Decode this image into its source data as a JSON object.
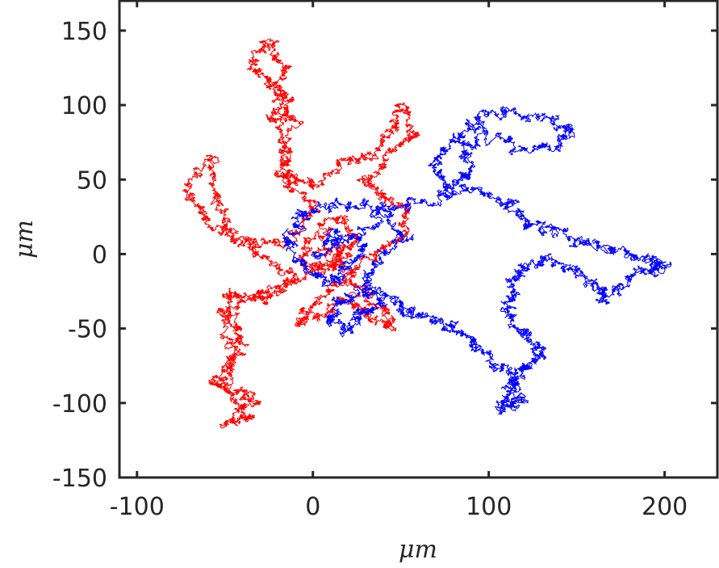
{
  "chart_data": {
    "type": "line",
    "title": "",
    "xlabel": "μm",
    "ylabel": "μm",
    "xlim": [
      -110,
      230
    ],
    "ylim": [
      -150,
      170
    ],
    "xticks": [
      -100,
      0,
      100,
      200
    ],
    "yticks": [
      -150,
      -100,
      -50,
      0,
      50,
      100,
      150
    ],
    "xtick_labels": [
      "-100",
      "0",
      "100",
      "200"
    ],
    "ytick_labels": [
      "-150",
      "-100",
      "-50",
      "0",
      "50",
      "100",
      "150"
    ],
    "grid": false,
    "legend": "none",
    "series": [
      {
        "color": "#ff0000",
        "description": "2D random-walk trajectory",
        "waypoints": [
          [
            0,
            0
          ],
          [
            15,
            5
          ],
          [
            -10,
            -20
          ],
          [
            -20,
            -25
          ],
          [
            -35,
            -30
          ],
          [
            -50,
            -28
          ],
          [
            -45,
            -45
          ],
          [
            -40,
            -60
          ],
          [
            -45,
            -75
          ],
          [
            -58,
            -87
          ],
          [
            -40,
            -92
          ],
          [
            -32,
            -100
          ],
          [
            -50,
            -115
          ],
          [
            -35,
            -110
          ],
          [
            -50,
            -90
          ],
          [
            -45,
            -70
          ],
          [
            -48,
            -40
          ],
          [
            -30,
            -25
          ],
          [
            -10,
            -15
          ],
          [
            -30,
            0
          ],
          [
            -45,
            10
          ],
          [
            -60,
            25
          ],
          [
            -72,
            42
          ],
          [
            -60,
            65
          ],
          [
            -55,
            40
          ],
          [
            -50,
            20
          ],
          [
            -35,
            5
          ],
          [
            -10,
            10
          ],
          [
            0,
            30
          ],
          [
            -10,
            48
          ],
          [
            -20,
            52
          ],
          [
            -15,
            70
          ],
          [
            -25,
            90
          ],
          [
            -15,
            100
          ],
          [
            -25,
            115
          ],
          [
            -35,
            125
          ],
          [
            -25,
            145
          ],
          [
            -15,
            125
          ],
          [
            -20,
            105
          ],
          [
            -10,
            90
          ],
          [
            -15,
            60
          ],
          [
            0,
            45
          ],
          [
            15,
            60
          ],
          [
            30,
            65
          ],
          [
            45,
            80
          ],
          [
            50,
            100
          ],
          [
            60,
            80
          ],
          [
            45,
            70
          ],
          [
            30,
            50
          ],
          [
            40,
            40
          ],
          [
            55,
            30
          ],
          [
            50,
            10
          ],
          [
            35,
            0
          ],
          [
            20,
            -15
          ],
          [
            5,
            -30
          ],
          [
            -10,
            -45
          ],
          [
            5,
            -40
          ],
          [
            20,
            -30
          ],
          [
            30,
            -40
          ],
          [
            45,
            -50
          ],
          [
            40,
            -35
          ],
          [
            25,
            -20
          ],
          [
            10,
            -5
          ],
          [
            25,
            10
          ],
          [
            15,
            25
          ],
          [
            0,
            10
          ],
          [
            -5,
            -5
          ],
          [
            10,
            -10
          ],
          [
            20,
            0
          ]
        ]
      },
      {
        "color": "#0000ff",
        "description": "2D random-walk trajectory",
        "waypoints": [
          [
            0,
            0
          ],
          [
            20,
            10
          ],
          [
            40,
            25
          ],
          [
            60,
            35
          ],
          [
            80,
            40
          ],
          [
            70,
            55
          ],
          [
            75,
            70
          ],
          [
            85,
            80
          ],
          [
            95,
            90
          ],
          [
            110,
            95
          ],
          [
            130,
            90
          ],
          [
            145,
            85
          ],
          [
            140,
            75
          ],
          [
            120,
            70
          ],
          [
            100,
            80
          ],
          [
            85,
            70
          ],
          [
            90,
            55
          ],
          [
            80,
            45
          ],
          [
            100,
            40
          ],
          [
            115,
            35
          ],
          [
            120,
            20
          ],
          [
            135,
            15
          ],
          [
            150,
            10
          ],
          [
            165,
            5
          ],
          [
            180,
            0
          ],
          [
            195,
            -5
          ],
          [
            202,
            -8
          ],
          [
            190,
            -10
          ],
          [
            175,
            -20
          ],
          [
            165,
            -30
          ],
          [
            160,
            -20
          ],
          [
            145,
            -10
          ],
          [
            130,
            -5
          ],
          [
            120,
            -10
          ],
          [
            115,
            -20
          ],
          [
            110,
            -35
          ],
          [
            115,
            -50
          ],
          [
            125,
            -60
          ],
          [
            130,
            -70
          ],
          [
            120,
            -75
          ],
          [
            115,
            -85
          ],
          [
            118,
            -100
          ],
          [
            108,
            -105
          ],
          [
            112,
            -90
          ],
          [
            115,
            -80
          ],
          [
            100,
            -70
          ],
          [
            90,
            -60
          ],
          [
            80,
            -50
          ],
          [
            70,
            -45
          ],
          [
            55,
            -40
          ],
          [
            45,
            -30
          ],
          [
            30,
            -25
          ],
          [
            15,
            -30
          ],
          [
            10,
            -45
          ],
          [
            20,
            -50
          ],
          [
            25,
            -40
          ],
          [
            40,
            -35
          ],
          [
            30,
            -15
          ],
          [
            40,
            0
          ],
          [
            55,
            10
          ],
          [
            40,
            30
          ],
          [
            20,
            35
          ],
          [
            0,
            30
          ],
          [
            -10,
            20
          ],
          [
            -15,
            5
          ],
          [
            -5,
            -10
          ],
          [
            10,
            -20
          ],
          [
            20,
            -10
          ],
          [
            30,
            5
          ],
          [
            15,
            15
          ],
          [
            5,
            5
          ]
        ]
      }
    ]
  }
}
